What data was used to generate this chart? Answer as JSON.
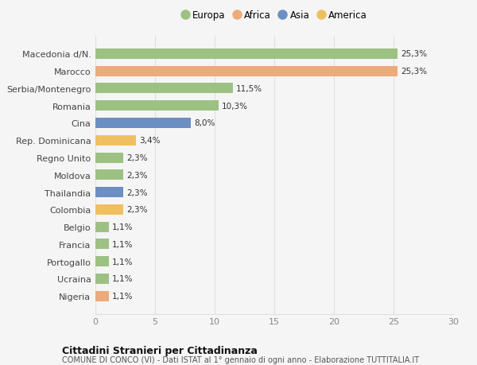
{
  "categories": [
    "Nigeria",
    "Ucraina",
    "Portogallo",
    "Francia",
    "Belgio",
    "Colombia",
    "Thailandia",
    "Moldova",
    "Regno Unito",
    "Rep. Dominicana",
    "Cina",
    "Romania",
    "Serbia/Montenegro",
    "Marocco",
    "Macedonia d/N."
  ],
  "values": [
    1.1,
    1.1,
    1.1,
    1.1,
    1.1,
    2.3,
    2.3,
    2.3,
    2.3,
    3.4,
    8.0,
    10.3,
    11.5,
    25.3,
    25.3
  ],
  "labels": [
    "1,1%",
    "1,1%",
    "1,1%",
    "1,1%",
    "1,1%",
    "2,3%",
    "2,3%",
    "2,3%",
    "2,3%",
    "3,4%",
    "8,0%",
    "10,3%",
    "11,5%",
    "25,3%",
    "25,3%"
  ],
  "colors": [
    "#EDAB7A",
    "#9DC183",
    "#9DC183",
    "#9DC183",
    "#9DC183",
    "#F0C060",
    "#6B8FC2",
    "#9DC183",
    "#9DC183",
    "#F0C060",
    "#6B8FC2",
    "#9DC183",
    "#9DC183",
    "#EDAB7A",
    "#9DC183"
  ],
  "legend": [
    {
      "label": "Europa",
      "color": "#9DC183"
    },
    {
      "label": "Africa",
      "color": "#EDAB7A"
    },
    {
      "label": "Asia",
      "color": "#6B8FC2"
    },
    {
      "label": "America",
      "color": "#F0C060"
    }
  ],
  "xlim": [
    0,
    30
  ],
  "xticks": [
    0,
    5,
    10,
    15,
    20,
    25,
    30
  ],
  "title1": "Cittadini Stranieri per Cittadinanza",
  "title2": "COMUNE DI CONCO (VI) - Dati ISTAT al 1° gennaio di ogni anno - Elaborazione TUTTITALIA.IT",
  "bg_color": "#f5f5f5",
  "grid_color": "#e0e0e0",
  "bar_height": 0.6
}
